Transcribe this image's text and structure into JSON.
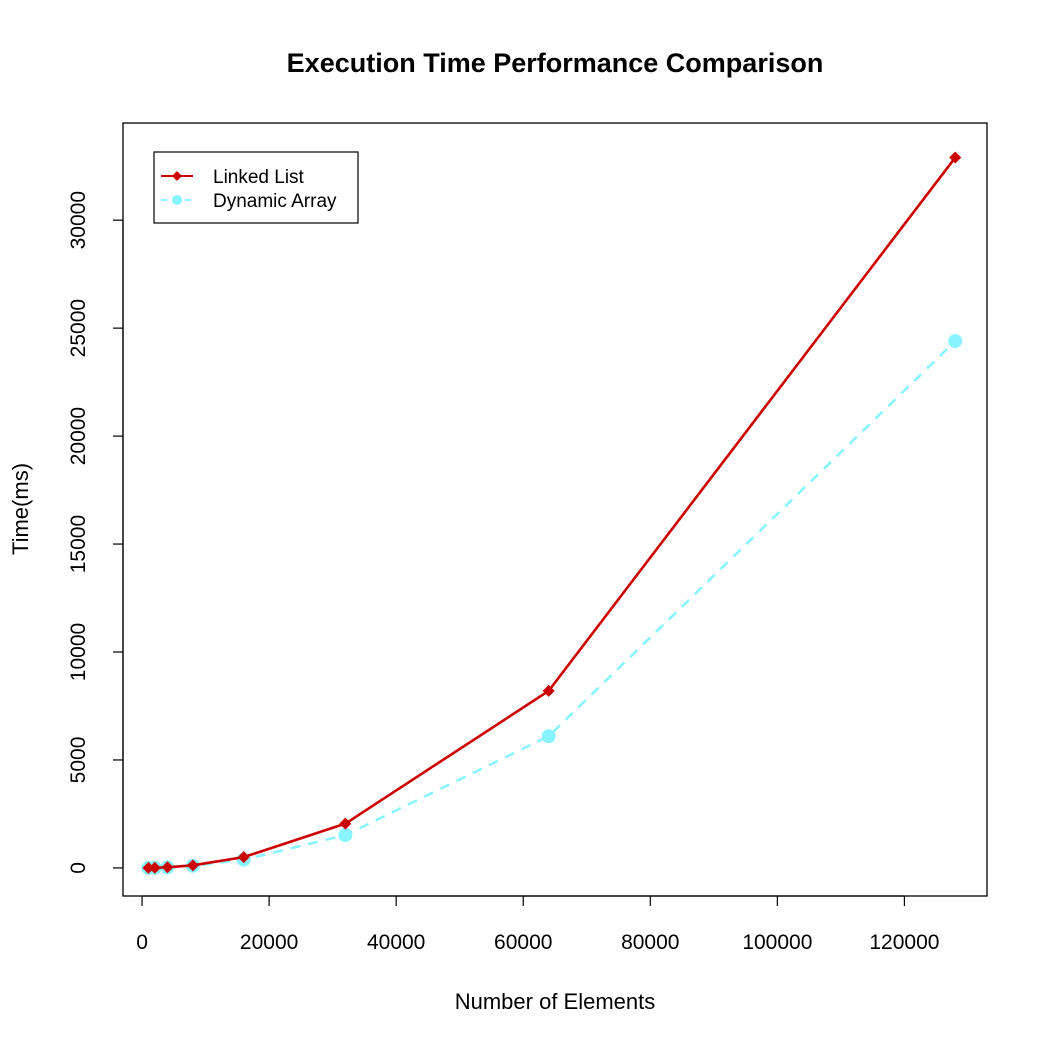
{
  "chart_data": {
    "type": "line",
    "title": "Execution Time Performance Comparison",
    "xlabel": "Number of Elements",
    "ylabel": "Time(ms)",
    "xlim": [
      0,
      130000
    ],
    "ylim": [
      -1000,
      34000
    ],
    "x_ticks": [
      0,
      20000,
      40000,
      60000,
      80000,
      100000,
      120000
    ],
    "y_ticks": [
      0,
      5000,
      10000,
      15000,
      20000,
      25000,
      30000
    ],
    "legend_position": "top-left",
    "grid": false,
    "series": [
      {
        "name": "Linked List",
        "color": "#cc0000",
        "line_style": "solid",
        "marker": "diamond",
        "x": [
          1000,
          2000,
          4000,
          8000,
          16000,
          32000,
          64000,
          128000
        ],
        "y": [
          2,
          8,
          30,
          120,
          500,
          2050,
          8200,
          32900
        ]
      },
      {
        "name": "Dynamic Array",
        "color": "#88f4ff",
        "line_style": "dashed",
        "marker": "circle",
        "x": [
          1000,
          2000,
          4000,
          8000,
          16000,
          32000,
          64000,
          128000
        ],
        "y": [
          1,
          6,
          25,
          100,
          380,
          1520,
          6100,
          24400
        ]
      }
    ]
  }
}
